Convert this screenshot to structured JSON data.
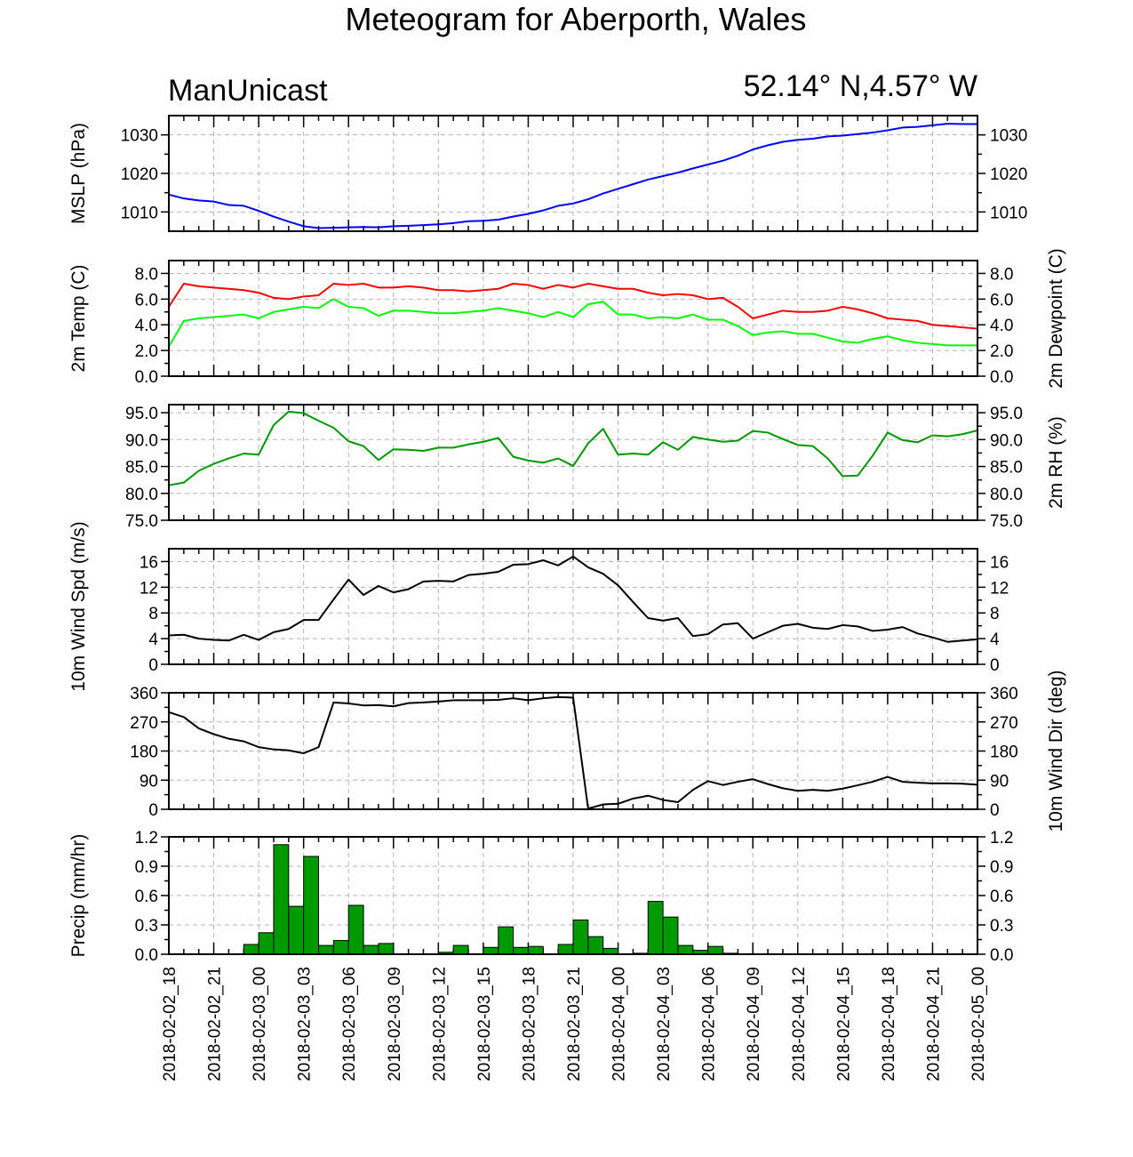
{
  "title": "Meteogram for Aberporth, Wales",
  "model": "ManUnicast",
  "location": "52.14° N,4.57° W",
  "chart_data": [
    {
      "name": "mslp",
      "type": "line",
      "ylabel": "MSLP (hPa)",
      "ylabel_right": "",
      "ylim": [
        1005,
        1035
      ],
      "yticks": [
        1010,
        1020,
        1030
      ],
      "ytick_labels": [
        "1010",
        "1020",
        "1030"
      ],
      "right_tick_labels": true,
      "color": "#0000ff",
      "series": [
        {
          "values": [
            1014.5,
            1013.5,
            1013,
            1012.7,
            1011.8,
            1011.6,
            1010.3,
            1008.8,
            1007.5,
            1006.3,
            1005.8,
            1005.9,
            1006.0,
            1006.1,
            1006.0,
            1006.3,
            1006.4,
            1006.6,
            1006.8,
            1007.1,
            1007.6,
            1007.7,
            1008.0,
            1008.8,
            1009.5,
            1010.4,
            1011.6,
            1012.2,
            1013.3,
            1014.8,
            1016.0,
            1017.2,
            1018.4,
            1019.3,
            1020.2,
            1021.3,
            1022.3,
            1023.3,
            1024.6,
            1026.2,
            1027.3,
            1028.2,
            1028.7,
            1029.0,
            1029.6,
            1029.8,
            1030.2,
            1030.6,
            1031.2,
            1031.9,
            1032.1,
            1032.5,
            1032.9,
            1032.8,
            1032.8
          ]
        }
      ]
    },
    {
      "name": "temp",
      "type": "line",
      "ylabel": "2m Temp (C)",
      "ylabel_right": "2m Dewpoint (C)",
      "ylim": [
        0,
        9
      ],
      "yticks": [
        0,
        2,
        4,
        6,
        8
      ],
      "ytick_labels": [
        "0.0",
        "2.0",
        "4.0",
        "6.0",
        "8.0"
      ],
      "right_tick_labels": true,
      "series": [
        {
          "color": "#ff0000",
          "values": [
            5.4,
            7.2,
            7.0,
            6.9,
            6.8,
            6.7,
            6.5,
            6.1,
            6.0,
            6.2,
            6.3,
            7.2,
            7.1,
            7.2,
            6.9,
            6.9,
            7.0,
            6.9,
            6.7,
            6.7,
            6.6,
            6.7,
            6.8,
            7.2,
            7.1,
            6.8,
            7.1,
            6.9,
            7.2,
            7.0,
            6.8,
            6.8,
            6.5,
            6.3,
            6.4,
            6.3,
            6.0,
            6.1,
            5.4,
            4.5,
            4.8,
            5.1,
            5.0,
            5.0,
            5.1,
            5.4,
            5.2,
            4.9,
            4.5,
            4.4,
            4.3,
            4.0,
            3.9,
            3.8,
            3.7
          ]
        },
        {
          "color": "#00ff00",
          "values": [
            2.3,
            4.3,
            4.5,
            4.6,
            4.7,
            4.8,
            4.5,
            5.0,
            5.2,
            5.4,
            5.3,
            6.0,
            5.4,
            5.3,
            4.7,
            5.1,
            5.1,
            5.0,
            4.9,
            4.9,
            5.0,
            5.1,
            5.3,
            5.1,
            4.9,
            4.6,
            5.0,
            4.6,
            5.6,
            5.8,
            4.8,
            4.8,
            4.5,
            4.6,
            4.5,
            4.8,
            4.4,
            4.4,
            3.9,
            3.2,
            3.4,
            3.5,
            3.3,
            3.3,
            3.0,
            2.7,
            2.6,
            2.9,
            3.1,
            2.8,
            2.6,
            2.5,
            2.4,
            2.4,
            2.4
          ]
        }
      ]
    },
    {
      "name": "rh",
      "type": "line",
      "ylabel": "",
      "ylabel_right": "2m RH (%)",
      "ylim": [
        75,
        96.5
      ],
      "yticks": [
        75,
        80,
        85,
        90,
        95
      ],
      "ytick_labels": [
        "75.0",
        "80.0",
        "85.0",
        "90.0",
        "95.0"
      ],
      "right_tick_labels": true,
      "color": "#009900",
      "series": [
        {
          "values": [
            81.5,
            82.0,
            84.2,
            85.5,
            86.5,
            87.4,
            87.2,
            92.7,
            95.2,
            94.9,
            93.5,
            92.2,
            89.7,
            88.8,
            86.2,
            88.2,
            88.1,
            87.9,
            88.5,
            88.5,
            89.1,
            89.6,
            90.3,
            86.8,
            86.1,
            85.7,
            86.5,
            85.1,
            89.3,
            92.0,
            87.2,
            87.4,
            87.2,
            89.5,
            88.1,
            90.5,
            90.0,
            89.6,
            89.8,
            91.6,
            91.3,
            90.1,
            89.0,
            88.8,
            86.5,
            83.2,
            83.3,
            87.0,
            91.3,
            89.9,
            89.5,
            90.8,
            90.6,
            91.0,
            91.7
          ]
        }
      ]
    },
    {
      "name": "wspd",
      "type": "line",
      "ylabel": "10m Wind Spd (m/s)",
      "ylabel_right": "",
      "ylim": [
        0,
        18
      ],
      "yticks": [
        0,
        4,
        8,
        12,
        16
      ],
      "ytick_labels": [
        "0",
        "4",
        "8",
        "12",
        "16"
      ],
      "right_tick_labels": true,
      "color": "#000000",
      "series": [
        {
          "values": [
            4.5,
            4.6,
            4.0,
            3.8,
            3.7,
            4.6,
            3.8,
            5.0,
            5.5,
            6.9,
            6.9,
            10.1,
            13.2,
            10.8,
            12.2,
            11.2,
            11.7,
            12.9,
            13.0,
            12.9,
            13.9,
            14.1,
            14.4,
            15.5,
            15.6,
            16.2,
            15.4,
            16.8,
            15.1,
            14.1,
            12.3,
            9.7,
            7.2,
            6.8,
            7.2,
            4.4,
            4.7,
            6.2,
            6.4,
            4.0,
            5.0,
            6.0,
            6.3,
            5.7,
            5.5,
            6.1,
            5.9,
            5.2,
            5.4,
            5.8,
            4.8,
            4.2,
            3.5,
            3.7,
            3.9
          ]
        }
      ]
    },
    {
      "name": "wdir",
      "type": "line",
      "ylabel": "",
      "ylabel_right": "10m Wind Dir (deg)",
      "ylim": [
        0,
        360
      ],
      "yticks": [
        0,
        90,
        180,
        270,
        360
      ],
      "ytick_labels": [
        "0",
        "90",
        "180",
        "270",
        "360"
      ],
      "right_tick_labels": true,
      "color": "#000000",
      "series": [
        {
          "values": [
            300,
            285,
            250,
            232,
            218,
            210,
            192,
            185,
            182,
            173,
            192,
            330,
            327,
            321,
            322,
            318,
            328,
            330,
            333,
            337,
            337,
            337,
            338,
            343,
            337,
            343,
            347,
            345,
            2,
            15,
            17,
            33,
            42,
            29,
            22,
            60,
            87,
            75,
            85,
            93,
            78,
            65,
            57,
            60,
            57,
            64,
            74,
            85,
            100,
            85,
            82,
            80,
            80,
            79,
            76
          ]
        }
      ]
    },
    {
      "name": "precip",
      "type": "bar",
      "ylabel": "Precip (mm/hr)",
      "ylabel_right": "",
      "ylim": [
        0,
        1.2
      ],
      "yticks": [
        0,
        0.3,
        0.6,
        0.9,
        1.2
      ],
      "ytick_labels": [
        "0.0",
        "0.3",
        "0.6",
        "0.9",
        "1.2"
      ],
      "right_tick_labels": true,
      "color": "#009900",
      "series": [
        {
          "values": [
            0,
            0,
            0,
            0,
            0,
            0.1,
            0.22,
            1.12,
            0.49,
            1.0,
            0.09,
            0.14,
            0.5,
            0.09,
            0.11,
            0,
            0,
            0,
            0.02,
            0.09,
            0,
            0.07,
            0.28,
            0.07,
            0.08,
            0,
            0.1,
            0.35,
            0.18,
            0.06,
            0,
            0.01,
            0.54,
            0.38,
            0.09,
            0.04,
            0.08,
            0.01,
            0,
            0,
            0,
            0,
            0,
            0,
            0,
            0,
            0,
            0,
            0,
            0,
            0,
            0,
            0,
            0
          ]
        }
      ]
    }
  ],
  "x_tick_labels": [
    "2018-02-02_18",
    "2018-02-02_21",
    "2018-02-03_00",
    "2018-02-03_03",
    "2018-02-03_06",
    "2018-02-03_09",
    "2018-02-03_12",
    "2018-02-03_15",
    "2018-02-03_18",
    "2018-02-03_21",
    "2018-02-04_00",
    "2018-02-04_03",
    "2018-02-04_06",
    "2018-02-04_09",
    "2018-02-04_12",
    "2018-02-04_15",
    "2018-02-04_18",
    "2018-02-04_21",
    "2018-02-05_00"
  ]
}
